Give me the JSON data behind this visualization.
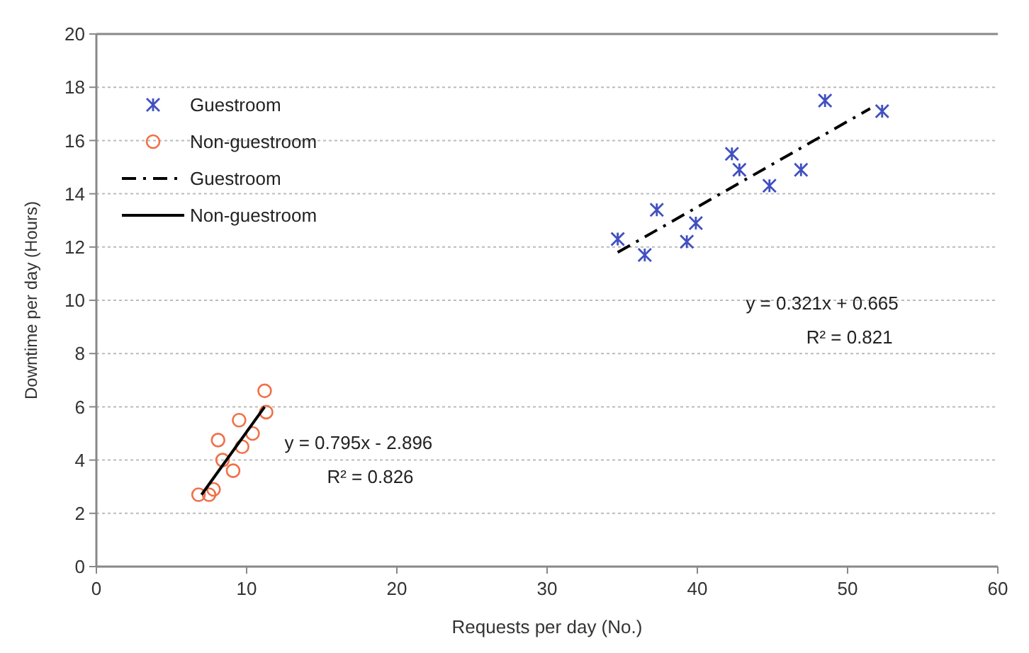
{
  "chart_data": {
    "type": "scatter",
    "xlabel": "Requests per day (No.)",
    "ylabel": "Downtime per day (Hours)",
    "xlim": [
      0,
      60
    ],
    "xticks": [
      0,
      10,
      20,
      30,
      40,
      50,
      60
    ],
    "ylim": [
      0,
      20
    ],
    "yticks": [
      0,
      2,
      4,
      6,
      8,
      10,
      12,
      14,
      16,
      18,
      20
    ],
    "grid": "y",
    "legend": "top left",
    "series": [
      {
        "name": "Guestroom",
        "marker": "cross",
        "color": "#4050c0",
        "x": [
          34.7,
          36.5,
          37.3,
          39.3,
          39.9,
          42.3,
          42.8,
          44.8,
          46.9,
          48.5,
          52.3
        ],
        "values": [
          12.3,
          11.7,
          13.4,
          12.2,
          12.9,
          15.5,
          14.9,
          14.3,
          14.9,
          17.5,
          17.1
        ]
      },
      {
        "name": "Non-guestroom",
        "marker": "circle",
        "color": "#f07048",
        "x": [
          11.2,
          11.3,
          9.5,
          10.4,
          8.1,
          9.7,
          8.4,
          9.1,
          7.8,
          7.5,
          6.8
        ],
        "values": [
          6.6,
          5.8,
          5.5,
          5.0,
          4.75,
          4.5,
          4.0,
          3.6,
          2.9,
          2.7,
          2.7
        ]
      },
      {
        "name": "Guestroom",
        "type": "line",
        "line_style": "dashed",
        "marker": "none",
        "color": "#000000",
        "x": [
          34.7,
          51.5
        ],
        "values": [
          11.8,
          17.2
        ]
      },
      {
        "name": "Non-guestroom",
        "type": "line",
        "line_style": "solid",
        "marker": "none",
        "color": "#000000",
        "x": [
          7,
          11.2
        ],
        "values": [
          2.7,
          6.0
        ]
      }
    ],
    "annotations": [
      "y = 0.321x + 0.665",
      "R² = 0.821",
      "y = 0.795x - 2.896",
      "R² = 0.826"
    ]
  }
}
